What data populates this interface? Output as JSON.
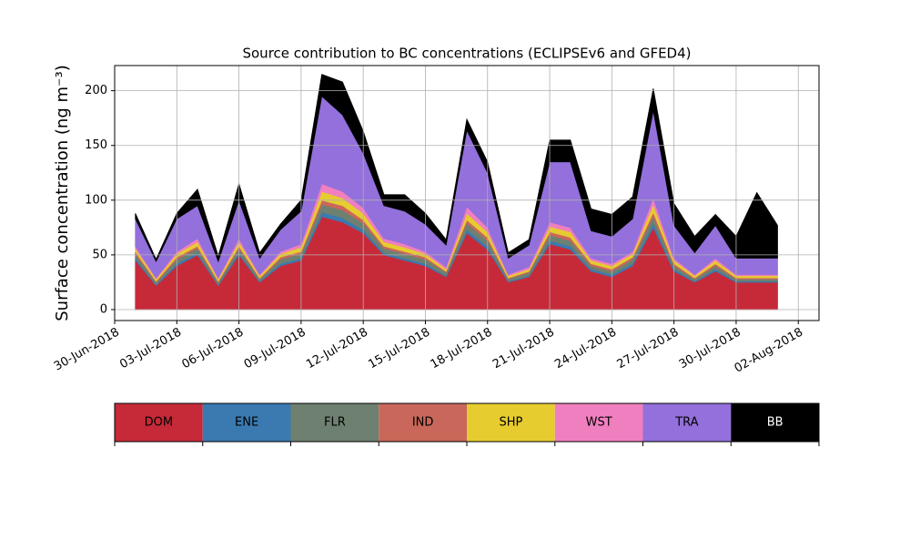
{
  "chart_data": {
    "type": "stacked_area",
    "title": "Source contribution to BC concentrations (ECLIPSEv6 and GFED4)",
    "y_label": "Surface concentration (ng m⁻³)",
    "x": [
      "2018-07-01",
      "2018-07-02",
      "2018-07-03",
      "2018-07-04",
      "2018-07-05",
      "2018-07-06",
      "2018-07-07",
      "2018-07-08",
      "2018-07-09",
      "2018-07-10",
      "2018-07-11",
      "2018-07-12",
      "2018-07-13",
      "2018-07-14",
      "2018-07-15",
      "2018-07-16",
      "2018-07-17",
      "2018-07-18",
      "2018-07-19",
      "2018-07-20",
      "2018-07-21",
      "2018-07-22",
      "2018-07-23",
      "2018-07-24",
      "2018-07-25",
      "2018-07-26",
      "2018-07-27",
      "2018-07-28",
      "2018-07-29",
      "2018-07-30",
      "2018-07-31",
      "2018-08-01"
    ],
    "series": [
      {
        "name": "DOM",
        "color": "#c62a39",
        "values": [
          45,
          22,
          40,
          50,
          22,
          50,
          25,
          40,
          45,
          85,
          80,
          70,
          50,
          45,
          40,
          30,
          70,
          55,
          25,
          30,
          60,
          55,
          35,
          30,
          40,
          75,
          35,
          25,
          35,
          25,
          25,
          25
        ]
      },
      {
        "name": "ENE",
        "color": "#3a7ab0",
        "values": [
          2,
          1,
          2,
          2,
          1,
          2,
          1,
          2,
          2,
          4,
          4,
          3,
          2,
          2,
          2,
          1,
          3,
          3,
          1,
          1,
          3,
          3,
          2,
          2,
          2,
          4,
          2,
          1,
          2,
          1,
          1,
          1
        ]
      },
      {
        "name": "FLR",
        "color": "#6e8070",
        "values": [
          4,
          2,
          4,
          4,
          2,
          4,
          2,
          4,
          4,
          7,
          7,
          6,
          4,
          4,
          4,
          3,
          6,
          5,
          2,
          3,
          5,
          5,
          3,
          3,
          4,
          6,
          3,
          2,
          3,
          2,
          2,
          2
        ]
      },
      {
        "name": "IND",
        "color": "#c8675a",
        "values": [
          2,
          1,
          2,
          2,
          1,
          2,
          1,
          2,
          2,
          4,
          4,
          3,
          2,
          2,
          2,
          1,
          3,
          3,
          1,
          1,
          3,
          3,
          2,
          2,
          2,
          4,
          2,
          1,
          2,
          1,
          1,
          1
        ]
      },
      {
        "name": "SHP",
        "color": "#e6cc2f",
        "values": [
          3,
          2,
          3,
          4,
          2,
          4,
          2,
          3,
          4,
          8,
          7,
          6,
          4,
          4,
          3,
          2,
          6,
          5,
          2,
          2,
          5,
          5,
          3,
          3,
          3,
          7,
          3,
          2,
          3,
          2,
          2,
          2
        ]
      },
      {
        "name": "WST",
        "color": "#f07fbf",
        "values": [
          2,
          1,
          2,
          3,
          1,
          3,
          1,
          2,
          3,
          7,
          6,
          5,
          3,
          3,
          2,
          2,
          6,
          4,
          1,
          2,
          4,
          4,
          2,
          2,
          2,
          6,
          2,
          1,
          2,
          1,
          1,
          1
        ]
      },
      {
        "name": "TRA",
        "color": "#9370db",
        "values": [
          25,
          15,
          30,
          30,
          15,
          35,
          15,
          20,
          30,
          80,
          70,
          50,
          30,
          30,
          25,
          20,
          70,
          50,
          15,
          20,
          55,
          60,
          25,
          25,
          30,
          80,
          30,
          20,
          30,
          15,
          15,
          15
        ]
      },
      {
        "name": "BB",
        "color": "#000000",
        "values": [
          5,
          2,
          5,
          15,
          5,
          15,
          5,
          5,
          10,
          20,
          30,
          20,
          10,
          15,
          10,
          5,
          10,
          10,
          5,
          5,
          20,
          20,
          20,
          20,
          20,
          20,
          20,
          15,
          10,
          20,
          60,
          30
        ]
      }
    ],
    "xlim": [
      "2018-06-30",
      "2018-08-03"
    ],
    "xticks": [
      {
        "value": "2018-06-30",
        "label": "30-Jun-2018"
      },
      {
        "value": "2018-07-03",
        "label": "03-Jul-2018"
      },
      {
        "value": "2018-07-06",
        "label": "06-Jul-2018"
      },
      {
        "value": "2018-07-09",
        "label": "09-Jul-2018"
      },
      {
        "value": "2018-07-12",
        "label": "12-Jul-2018"
      },
      {
        "value": "2018-07-15",
        "label": "15-Jul-2018"
      },
      {
        "value": "2018-07-18",
        "label": "18-Jul-2018"
      },
      {
        "value": "2018-07-21",
        "label": "21-Jul-2018"
      },
      {
        "value": "2018-07-24",
        "label": "24-Jul-2018"
      },
      {
        "value": "2018-07-27",
        "label": "27-Jul-2018"
      },
      {
        "value": "2018-07-30",
        "label": "30-Jul-2018"
      },
      {
        "value": "2018-08-02",
        "label": "02-Aug-2018"
      }
    ],
    "ylim": [
      -10,
      223
    ],
    "yticks": [
      0,
      50,
      100,
      150,
      200
    ],
    "grid": true
  }
}
